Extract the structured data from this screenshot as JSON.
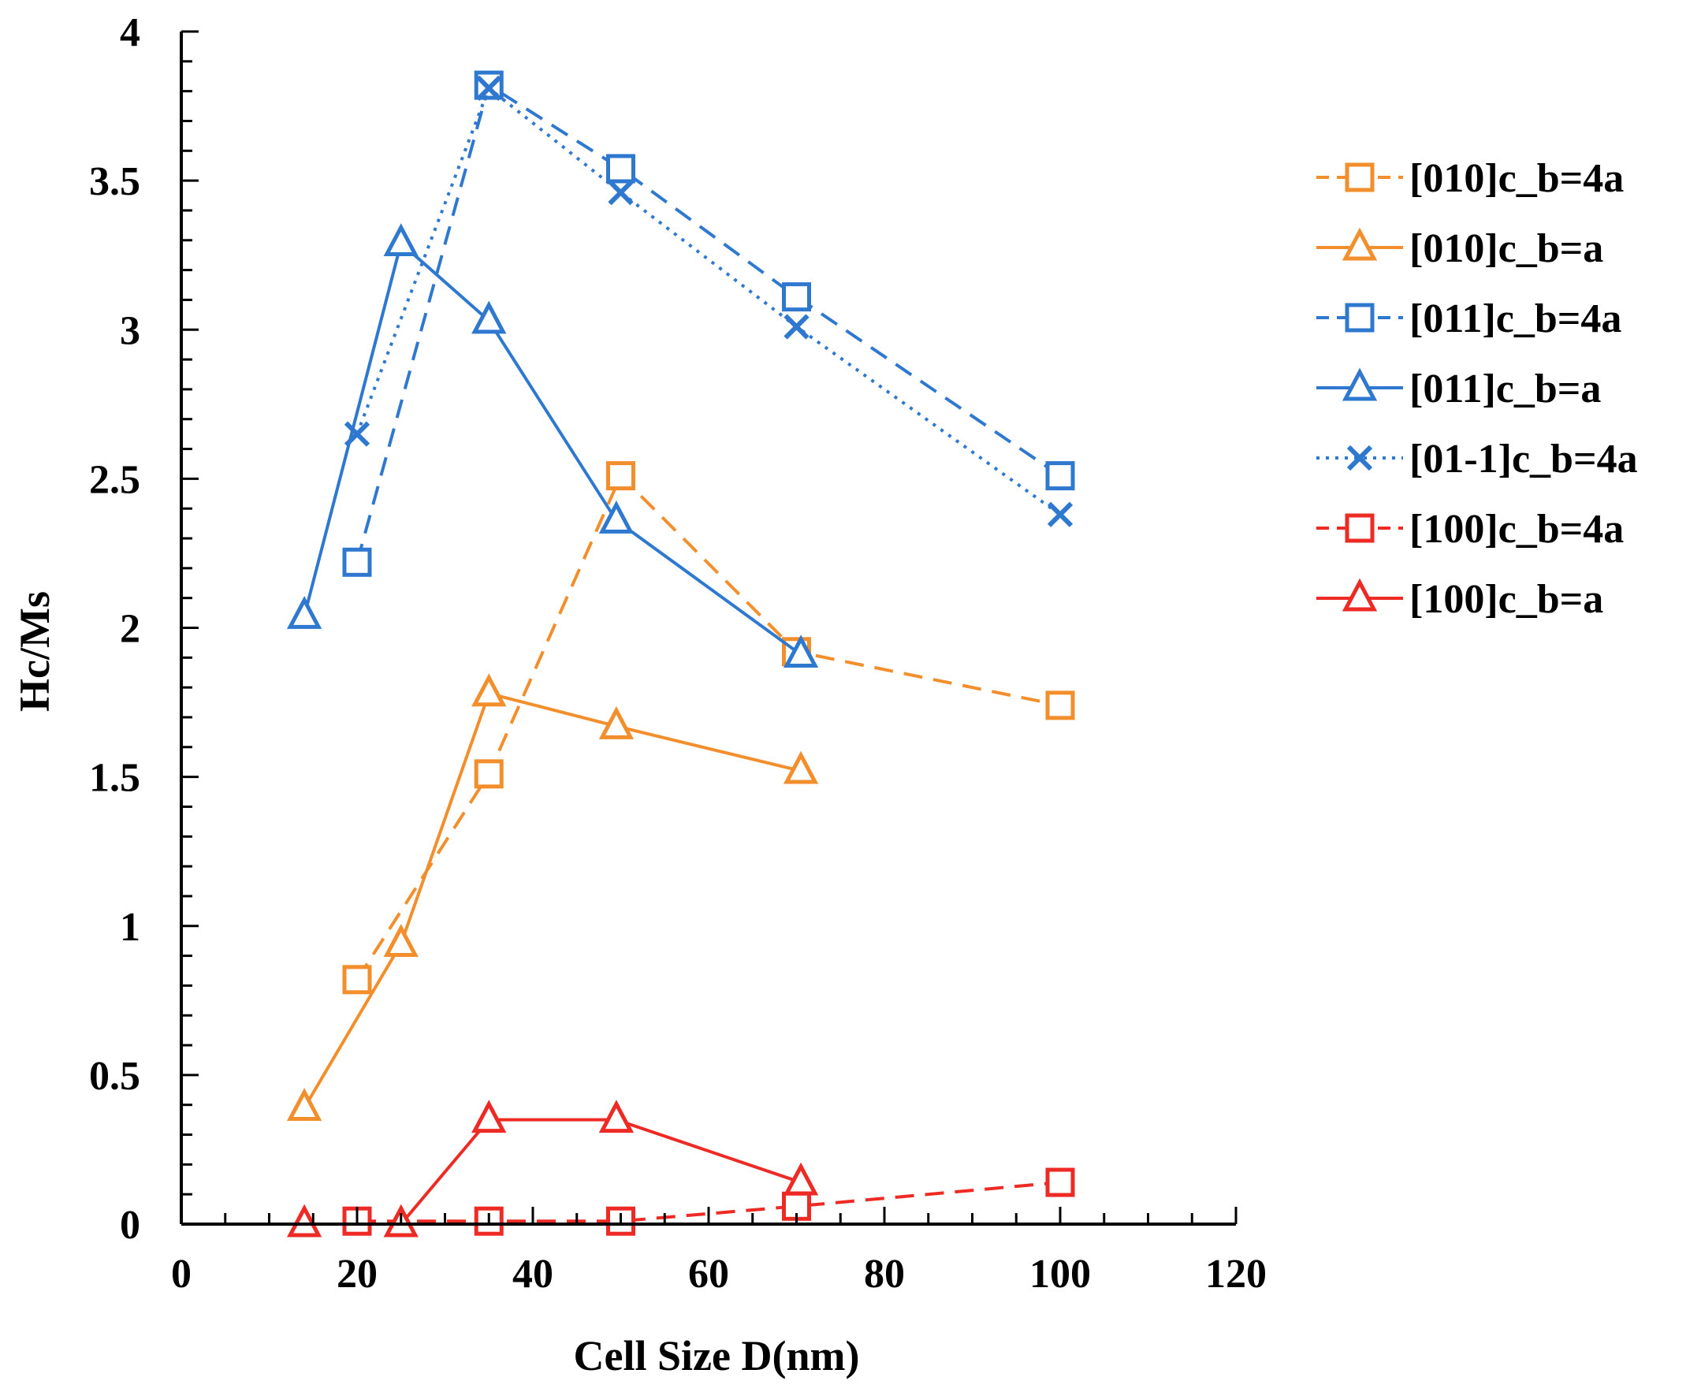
{
  "chart_data": {
    "type": "line",
    "title": "",
    "xlabel": "Cell Size D(nm)",
    "ylabel": "Hc/Ms",
    "xlim": [
      0,
      120
    ],
    "ylim": [
      0,
      4
    ],
    "xticks": [
      0,
      20,
      40,
      60,
      80,
      100,
      120
    ],
    "yticks": [
      0,
      0.5,
      1,
      1.5,
      2,
      2.5,
      3,
      3.5,
      4
    ],
    "xtick_labels": [
      "0",
      "20",
      "40",
      "60",
      "80",
      "100",
      "120"
    ],
    "ytick_labels": [
      "0",
      "0.5",
      "1",
      "1.5",
      "2",
      "2.5",
      "3",
      "3.5",
      "4"
    ],
    "grid": false,
    "legend_position": "right",
    "series": [
      {
        "name": "[010]c_b=4a",
        "color": "#f28e2b",
        "marker": "square",
        "dash": "dashed",
        "x": [
          20,
          35,
          50,
          70,
          100
        ],
        "y": [
          0.82,
          1.51,
          2.51,
          1.92,
          1.74
        ]
      },
      {
        "name": "[010]c_b=a",
        "color": "#f28e2b",
        "marker": "triangle",
        "dash": "solid",
        "x": [
          14,
          25,
          35,
          49.5,
          70.5
        ],
        "y": [
          0.39,
          0.94,
          1.78,
          1.67,
          1.52
        ]
      },
      {
        "name": "[011]c_b=4a",
        "color": "#2f78d0",
        "marker": "square",
        "dash": "dashed",
        "x": [
          20,
          35,
          50,
          70,
          100
        ],
        "y": [
          2.22,
          3.82,
          3.54,
          3.11,
          2.51
        ]
      },
      {
        "name": "[011]c_b=a",
        "color": "#2f78d0",
        "marker": "triangle",
        "dash": "solid",
        "x": [
          14,
          25,
          35,
          49.5,
          70.5
        ],
        "y": [
          2.04,
          3.29,
          3.03,
          2.36,
          1.91
        ]
      },
      {
        "name": "[01-1]c_b=4a",
        "color": "#2f78d0",
        "marker": "x",
        "dash": "dotted",
        "x": [
          20,
          35,
          50,
          70,
          100
        ],
        "y": [
          2.65,
          3.81,
          3.46,
          3.01,
          2.38
        ]
      },
      {
        "name": "[100]c_b=4a",
        "color": "#ee2a24",
        "marker": "square",
        "dash": "dashed",
        "x": [
          20,
          35,
          50,
          70,
          100
        ],
        "y": [
          0.01,
          0.01,
          0.01,
          0.06,
          0.14
        ]
      },
      {
        "name": "[100]c_b=a",
        "color": "#ee2a24",
        "marker": "triangle",
        "dash": "solid",
        "x": [
          14,
          25,
          35,
          49.5,
          70.5
        ],
        "y": [
          0,
          0,
          0.35,
          0.35,
          0.14
        ]
      }
    ]
  }
}
